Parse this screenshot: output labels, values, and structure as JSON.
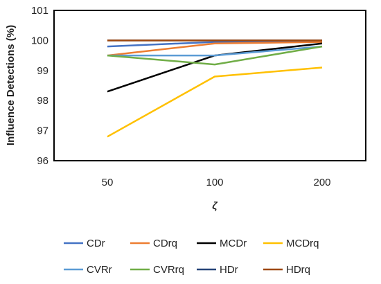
{
  "chart_data": {
    "type": "line",
    "title": "",
    "xlabel": "ζ",
    "ylabel": "Influence Detections (%)",
    "categories": [
      "50",
      "100",
      "200"
    ],
    "ylim": [
      96,
      101
    ],
    "yticks": [
      "96",
      "97",
      "98",
      "99",
      "100",
      "101"
    ],
    "grid": false,
    "legend_position": "bottom",
    "series": [
      {
        "name": "CDr",
        "color": "#4472C4",
        "values": [
          99.8,
          99.95,
          99.95
        ]
      },
      {
        "name": "CDrq",
        "color": "#ED7D31",
        "values": [
          99.5,
          99.9,
          99.95
        ]
      },
      {
        "name": "MCDr",
        "color": "#000000",
        "values": [
          98.3,
          99.5,
          99.9
        ]
      },
      {
        "name": "MCDrq",
        "color": "#FFC000",
        "values": [
          96.8,
          98.8,
          99.1
        ]
      },
      {
        "name": "CVRr",
        "color": "#5B9BD5",
        "values": [
          99.5,
          99.5,
          99.8
        ]
      },
      {
        "name": "CVRrq",
        "color": "#70AD47",
        "values": [
          99.5,
          99.2,
          99.8
        ]
      },
      {
        "name": "HDr",
        "color": "#264478",
        "values": [
          100,
          100,
          100
        ]
      },
      {
        "name": "HDrq",
        "color": "#9E480E",
        "values": [
          100,
          100,
          100
        ]
      }
    ]
  }
}
